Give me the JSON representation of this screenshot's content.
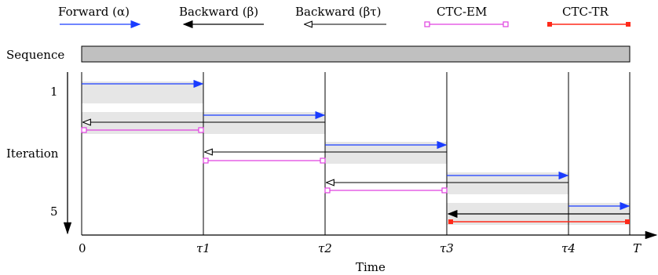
{
  "legend": {
    "forward": "Forward (α)",
    "backward": "Backward (β)",
    "backward_tau": "Backward (βτ)",
    "ctc_em": "CTC-EM",
    "ctc_tr": "CTC-TR"
  },
  "labels": {
    "sequence": "Sequence",
    "iteration": "Iteration",
    "iter_first": "1",
    "iter_last": "5",
    "time": "Time"
  },
  "ticks": [
    "0",
    "τ1",
    "τ2",
    "τ3",
    "τ4",
    "T"
  ],
  "colors": {
    "forward": "#1a3cff",
    "backward": "#000000",
    "ctc_em": "#e040e0",
    "ctc_tr": "#ff2a1a",
    "shade": "#e6e6e6",
    "sequence_bar": "#c0c0c0"
  }
}
